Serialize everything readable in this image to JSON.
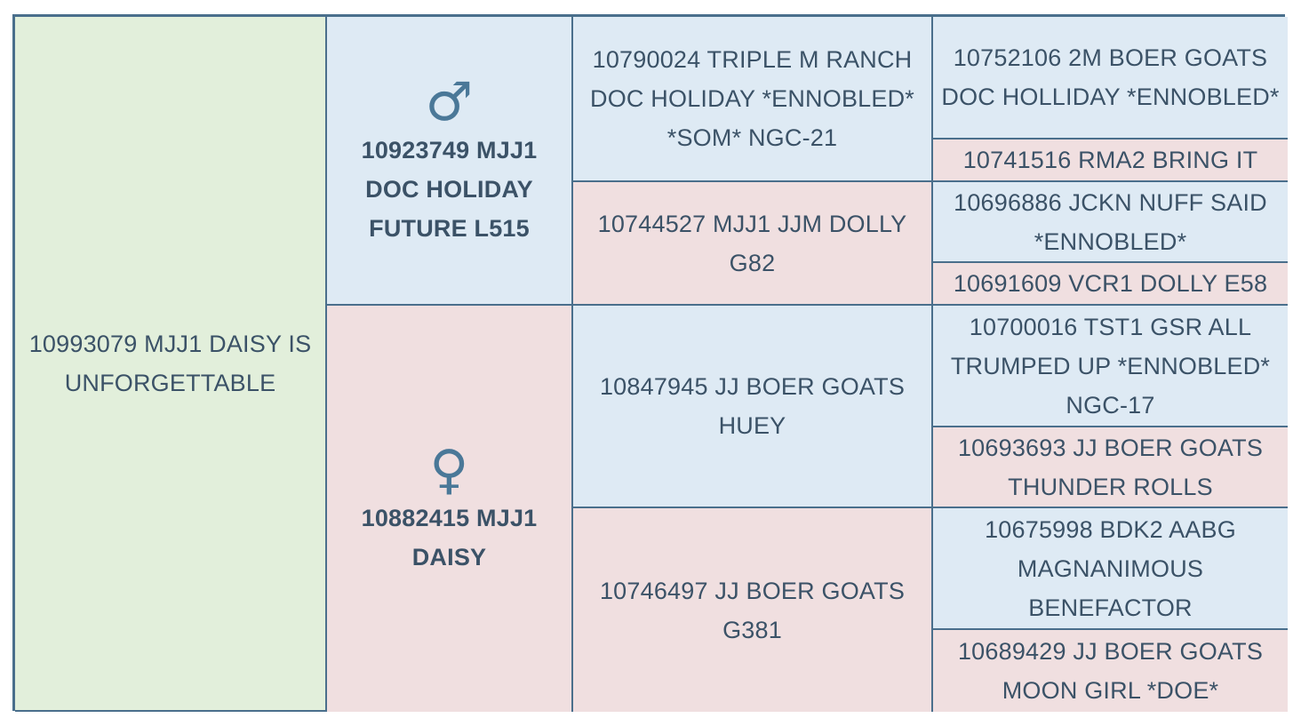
{
  "pedigree": {
    "animal": "10993079 MJJ1 DAISY IS UNFORGETTABLE",
    "sire": {
      "symbol": "♂",
      "name": "10923749 MJJ1 DOC HOLIDAY FUTURE L515"
    },
    "dam": {
      "symbol": "♀",
      "name": "10882415 MJJ1 DAISY"
    },
    "sire_sire": "10790024 TRIPLE M RANCH DOC HOLIDAY *ENNOBLED* *SOM* NGC-21",
    "sire_dam": "10744527 MJJ1 JJM DOLLY G82",
    "dam_sire": "10847945 JJ BOER GOATS HUEY",
    "dam_dam": "10746497 JJ BOER GOATS G381",
    "great_grandparents": [
      "10752106 2M BOER GOATS DOC HOLLIDAY *ENNOBLED*",
      "10741516 RMA2 BRING IT",
      "10696886 JCKN NUFF SAID *ENNOBLED*",
      "10691609 VCR1 DOLLY E58",
      "10700016 TST1 GSR ALL TRUMPED UP *ENNOBLED* NGC-17",
      "10693693 JJ BOER GOATS THUNDER ROLLS",
      "10675998 BDK2 AABG MAGNANIMOUS BENEFACTOR",
      "10689429 JJ BOER GOATS MOON GIRL *DOE*"
    ]
  },
  "colors": {
    "border": "#4a6f8c",
    "subject": "#e2efdb",
    "male": "#deeaf4",
    "female": "#f0dfe0",
    "text": "#3b5267"
  }
}
